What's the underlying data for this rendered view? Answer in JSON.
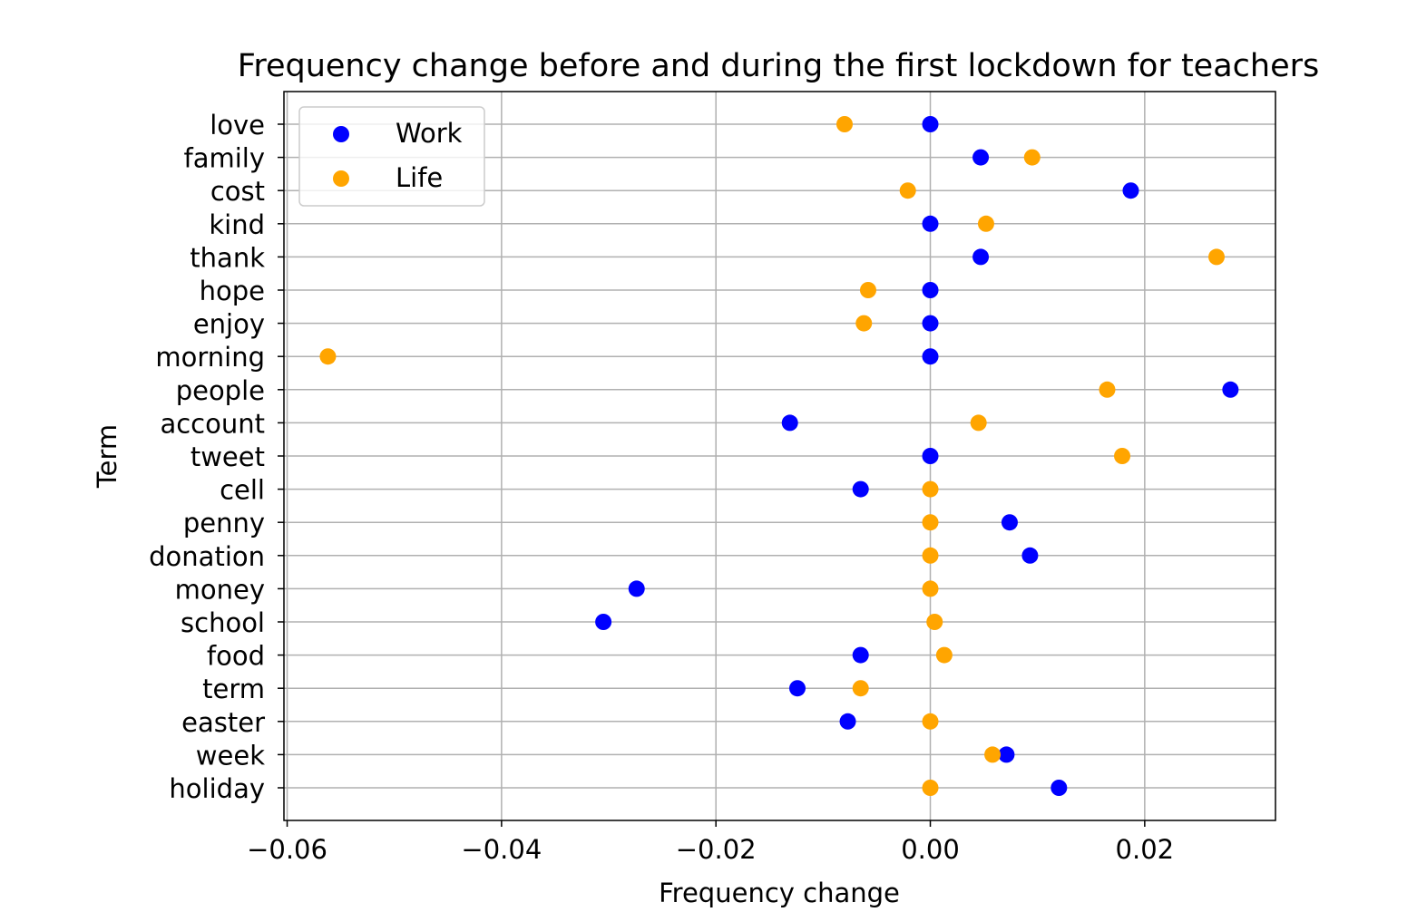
{
  "chart_data": {
    "type": "scatter",
    "title": "Frequency change before and during the first lockdown for teachers",
    "xlabel": "Frequency change",
    "ylabel": "Term",
    "xlim": [
      -0.0603,
      0.0322
    ],
    "xticks": [
      -0.06,
      -0.04,
      -0.02,
      0.0,
      0.02
    ],
    "xtick_labels": [
      "−0.06",
      "−0.04",
      "−0.02",
      "0.00",
      "0.02"
    ],
    "categories": [
      "love",
      "family",
      "cost",
      "kind",
      "thank",
      "hope",
      "enjoy",
      "morning",
      "people",
      "account",
      "tweet",
      "cell",
      "penny",
      "donation",
      "money",
      "school",
      "food",
      "term",
      "easter",
      "week",
      "holiday"
    ],
    "series": [
      {
        "name": "Work",
        "color": "#0000ff",
        "values": [
          0.0,
          0.0047,
          0.0187,
          0.0,
          0.0047,
          0.0,
          0.0,
          0.0,
          0.028,
          -0.0131,
          0.0,
          -0.0065,
          0.0074,
          0.0093,
          -0.0274,
          -0.0305,
          -0.0065,
          -0.0124,
          -0.0077,
          0.0071,
          0.012
        ]
      },
      {
        "name": "Life",
        "color": "#ffa500",
        "values": [
          -0.008,
          0.0095,
          -0.0021,
          0.0052,
          0.0267,
          -0.0058,
          -0.0062,
          -0.0562,
          0.0165,
          0.0045,
          0.0179,
          0.0,
          0.0,
          0.0,
          0.0,
          0.0004,
          0.0013,
          -0.0065,
          0.0,
          0.0058,
          0.0
        ]
      }
    ],
    "grid": true,
    "legend_position": "top-left"
  }
}
